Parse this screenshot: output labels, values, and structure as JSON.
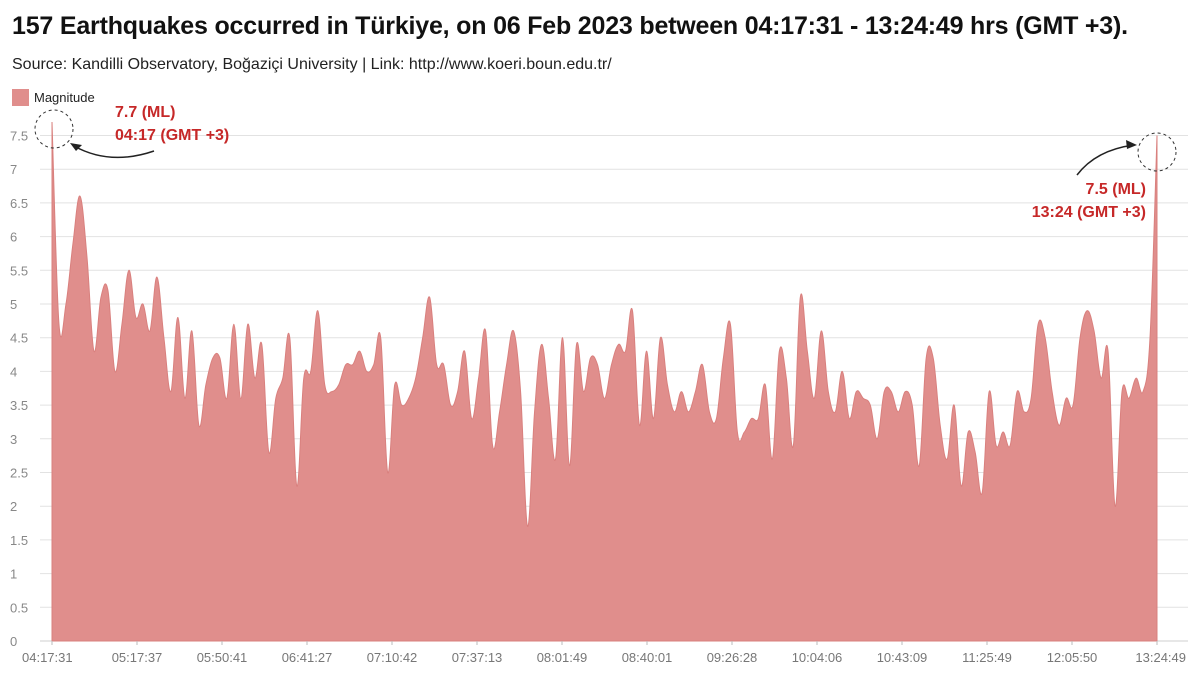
{
  "title": "157 Earthquakes occurred in Türkiye, on 06 Feb 2023 between 04:17:31 - 13:24:49 hrs (GMT +3).",
  "subtitle": "Source: Kandilli Observatory, Boğaziçi University | Link: http://www.koeri.boun.edu.tr/",
  "colors": {
    "fill": "#e08e8c",
    "stroke": "#d9807e",
    "annotation": "#c62828",
    "grid": "#e2e2e2"
  },
  "annotations": [
    {
      "line1": "7.7 (ML)",
      "line2": "04:17 (GMT +3)",
      "point_index": 0
    },
    {
      "line1": "7.5 (ML)",
      "line2": "13:24 (GMT +3)",
      "point_index": 156
    }
  ],
  "chart_data": {
    "type": "area",
    "series": [
      {
        "name": "Magnitude",
        "values": [
          7.7,
          4.7,
          5.0,
          5.9,
          6.6,
          5.7,
          4.3,
          5.1,
          5.2,
          4.0,
          4.7,
          5.5,
          4.8,
          5.0,
          4.6,
          5.4,
          4.5,
          3.7,
          4.8,
          3.6,
          4.6,
          3.2,
          3.8,
          4.2,
          4.2,
          3.6,
          4.7,
          3.6,
          4.7,
          3.9,
          4.4,
          2.8,
          3.6,
          3.9,
          4.5,
          2.3,
          3.9,
          4.0,
          4.9,
          3.8,
          3.7,
          3.8,
          4.1,
          4.1,
          4.3,
          4.0,
          4.1,
          4.5,
          2.5,
          3.8,
          3.5,
          3.6,
          3.9,
          4.5,
          5.1,
          4.1,
          4.1,
          3.5,
          3.7,
          4.3,
          3.3,
          3.9,
          4.6,
          2.9,
          3.4,
          4.1,
          4.6,
          3.7,
          1.7,
          3.4,
          4.4,
          3.6,
          2.7,
          4.5,
          2.6,
          4.4,
          3.7,
          4.2,
          4.1,
          3.6,
          4.1,
          4.4,
          4.3,
          4.9,
          3.2,
          4.3,
          3.3,
          4.5,
          3.8,
          3.4,
          3.7,
          3.4,
          3.7,
          4.1,
          3.4,
          3.3,
          4.2,
          4.7,
          3.1,
          3.1,
          3.3,
          3.3,
          3.8,
          2.7,
          4.3,
          3.9,
          2.9,
          5.1,
          4.3,
          3.6,
          4.6,
          3.7,
          3.4,
          4.0,
          3.3,
          3.7,
          3.6,
          3.5,
          3.0,
          3.7,
          3.7,
          3.4,
          3.7,
          3.5,
          2.6,
          4.2,
          4.2,
          3.2,
          2.7,
          3.5,
          2.3,
          3.1,
          2.8,
          2.2,
          3.7,
          2.9,
          3.1,
          2.9,
          3.7,
          3.4,
          3.6,
          4.7,
          4.5,
          3.7,
          3.2,
          3.6,
          3.5,
          4.5,
          4.9,
          4.6,
          3.9,
          4.3,
          2.0,
          3.7,
          3.6,
          3.9,
          3.7,
          4.5,
          7.5
        ]
      }
    ],
    "x_tick_labels": [
      "04:17:31",
      "05:17:37",
      "05:50:41",
      "06:41:27",
      "07:10:42",
      "07:37:13",
      "08:01:49",
      "08:40:01",
      "09:26:28",
      "10:04:06",
      "10:43:09",
      "11:25:49",
      "12:05:50",
      "13:24:49"
    ],
    "ylim": [
      0,
      7.5
    ],
    "y_ticks": [
      "0",
      "0.5",
      "1",
      "1.5",
      "2",
      "2.5",
      "3",
      "3.5",
      "4",
      "4.5",
      "5",
      "5.5",
      "6",
      "6.5",
      "7",
      "7.5"
    ],
    "xlabel": "",
    "ylabel": "",
    "grid": true,
    "legend": "top-left"
  }
}
